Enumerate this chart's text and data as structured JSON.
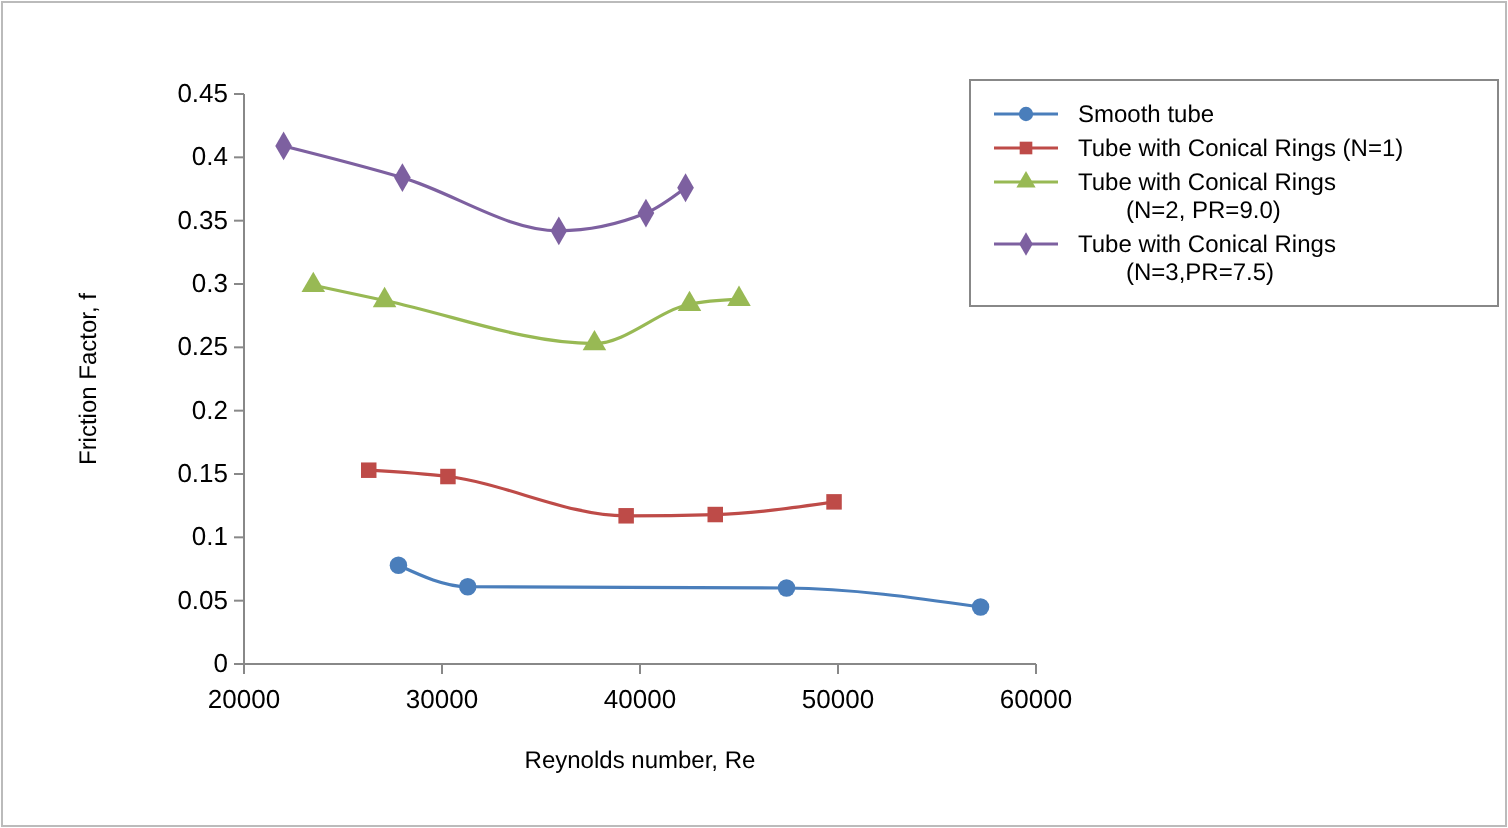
{
  "chart_data": {
    "type": "line",
    "xlabel": "Reynolds number, Re",
    "ylabel": "Friction Factor, f",
    "xlim": [
      20000,
      60000
    ],
    "xticks": [
      20000,
      30000,
      40000,
      50000,
      60000
    ],
    "ylim": [
      0,
      0.45
    ],
    "yticks": [
      0,
      0.05,
      0.1,
      0.15,
      0.2,
      0.25,
      0.3,
      0.35,
      0.4,
      0.45
    ],
    "grid": false,
    "legend": "top right",
    "series": [
      {
        "name": "Smooth tube",
        "color": "#4a7ebb",
        "marker": "circle",
        "x": [
          27800,
          31300,
          47400,
          57200
        ],
        "values": [
          0.078,
          0.061,
          0.06,
          0.045
        ]
      },
      {
        "name": "Tube with Conical Rings (N=1)",
        "color": "#be4b48",
        "marker": "square",
        "x": [
          26300,
          30300,
          39300,
          43800,
          49800
        ],
        "values": [
          0.153,
          0.148,
          0.117,
          0.118,
          0.128
        ]
      },
      {
        "name": "Tube with Conical Rings (N=2, PR=9.0)",
        "color": "#98b954",
        "marker": "triangle",
        "x": [
          23500,
          27100,
          37700,
          42500,
          45000
        ],
        "values": [
          0.299,
          0.287,
          0.253,
          0.284,
          0.288
        ]
      },
      {
        "name": "Tube with Conical Rings (N=3,PR=7.5)",
        "color": "#7d60a0",
        "marker": "diamond",
        "x": [
          22000,
          28000,
          35900,
          40300,
          42300
        ],
        "values": [
          0.409,
          0.384,
          0.342,
          0.356,
          0.376
        ]
      }
    ]
  }
}
